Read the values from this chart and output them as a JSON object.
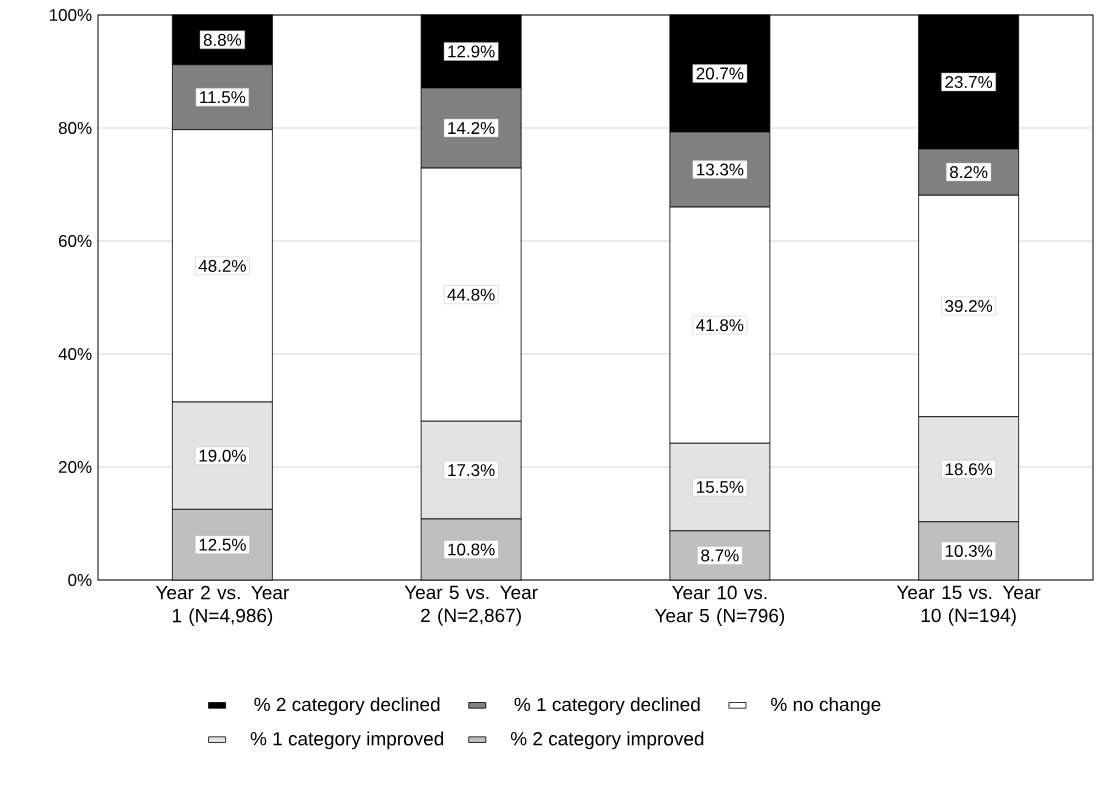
{
  "chart_data": {
    "type": "bar",
    "stacked": true,
    "categories": [
      "Year 2 vs. Year 1 (N=4,986)",
      "Year 5 vs. Year 2 (N=2,867)",
      "Year 10 vs. Year 5 (N=796)",
      "Year 15 vs. Year 10 (N=194)"
    ],
    "series": [
      {
        "name": "% 2 category improved",
        "color": "#bfbfbf",
        "values": [
          12.5,
          10.8,
          8.7,
          10.3
        ],
        "value_labels": [
          "12.5%",
          "10.8%",
          "8.7%",
          "10.3%"
        ]
      },
      {
        "name": "% 1 category improved",
        "color": "#e3e3e3",
        "values": [
          19.0,
          17.3,
          15.5,
          18.6
        ],
        "value_labels": [
          "19.0%",
          "17.3%",
          "15.5%",
          "18.6%"
        ]
      },
      {
        "name": "% no change",
        "color": "#ffffff",
        "values": [
          48.2,
          44.8,
          41.8,
          39.2
        ],
        "value_labels": [
          "48.2%",
          "44.8%",
          "41.8%",
          "39.2%"
        ]
      },
      {
        "name": "% 1 category declined",
        "color": "#808080",
        "values": [
          11.5,
          14.2,
          13.3,
          8.2
        ],
        "value_labels": [
          "11.5%",
          "14.2%",
          "13.3%",
          "8.2%"
        ]
      },
      {
        "name": "% 2 category declined",
        "color": "#000000",
        "values": [
          8.8,
          12.9,
          20.7,
          23.7
        ],
        "value_labels": [
          "8.8%",
          "12.9%",
          "20.7%",
          "23.7%"
        ]
      }
    ],
    "ylim": [
      0,
      100
    ],
    "yticks": [
      {
        "value": 0,
        "label": "0%"
      },
      {
        "value": 20,
        "label": "20%"
      },
      {
        "value": 40,
        "label": "40%"
      },
      {
        "value": 60,
        "label": "60%"
      },
      {
        "value": 80,
        "label": "80%"
      },
      {
        "value": 100,
        "label": "100%"
      }
    ],
    "grid": "y",
    "legend": "bottom"
  }
}
